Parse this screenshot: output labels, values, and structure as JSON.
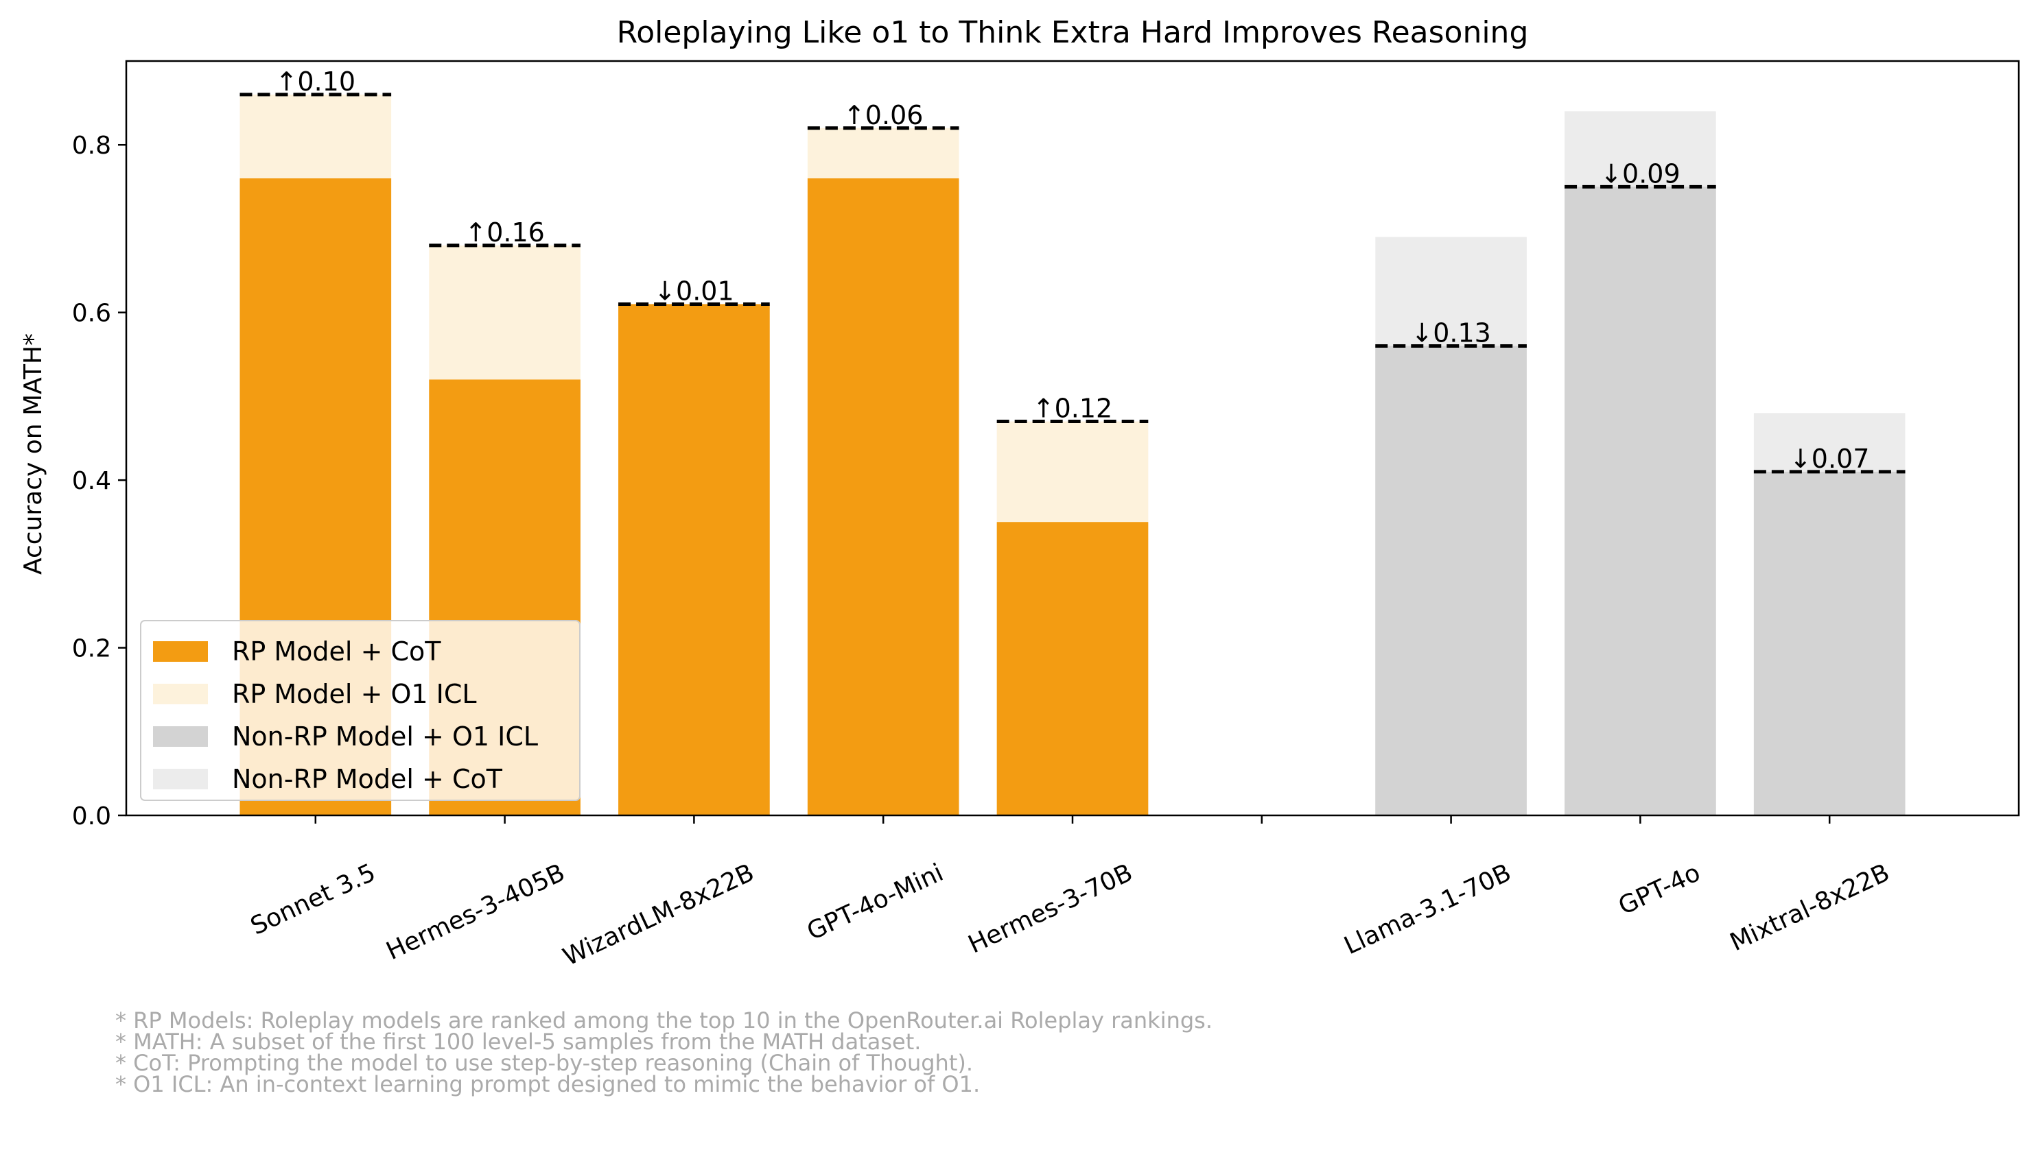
{
  "chart_data": {
    "type": "bar",
    "title": "Roleplaying Like o1 to Think Extra Hard Improves Reasoning",
    "xlabel": "",
    "ylabel": "Accuracy on MATH*",
    "ylim": [
      0,
      0.9
    ],
    "yticks": [
      "0.0",
      "0.2",
      "0.4",
      "0.6",
      "0.8"
    ],
    "ytick_values": [
      0,
      0.2,
      0.4,
      0.6,
      0.8
    ],
    "grid": false,
    "legend_position": "lower-left",
    "categories": [
      "Sonnet 3.5",
      "Hermes-3-405B",
      "WizardLM-8x22B",
      "GPT-4o-Mini",
      "Hermes-3-70B",
      "",
      "Llama-3.1-70B",
      "GPT-4o",
      "Mixtral-8x22B"
    ],
    "groups": {
      "rp": [
        0,
        1,
        2,
        3,
        4
      ],
      "non_rp": [
        6,
        7,
        8
      ]
    },
    "series": [
      {
        "name": "RP Model + CoT",
        "color": "#f39c12",
        "values": [
          0.76,
          0.52,
          0.61,
          0.76,
          0.35,
          null,
          null,
          null,
          null
        ]
      },
      {
        "name": "RP Model + O1 ICL",
        "color": "#fdf2dc",
        "values": [
          0.86,
          0.68,
          0.61,
          0.82,
          0.47,
          null,
          null,
          null,
          null
        ]
      },
      {
        "name": "Non-RP Model + O1 ICL",
        "color": "#d3d3d3",
        "values": [
          null,
          null,
          null,
          null,
          null,
          null,
          0.56,
          0.75,
          0.41
        ]
      },
      {
        "name": "Non-RP Model + CoT",
        "color": "#ececec",
        "values": [
          null,
          null,
          null,
          null,
          null,
          null,
          0.69,
          0.84,
          0.48
        ]
      }
    ],
    "annotations": [
      {
        "index": 0,
        "y": 0.86,
        "text": "↑0.10"
      },
      {
        "index": 1,
        "y": 0.68,
        "text": "↑0.16"
      },
      {
        "index": 2,
        "y": 0.61,
        "text": "↓0.01"
      },
      {
        "index": 3,
        "y": 0.82,
        "text": "↑0.06"
      },
      {
        "index": 4,
        "y": 0.47,
        "text": "↑0.12"
      },
      {
        "index": 6,
        "y": 0.56,
        "text": "↓0.13"
      },
      {
        "index": 7,
        "y": 0.75,
        "text": "↓0.09"
      },
      {
        "index": 8,
        "y": 0.41,
        "text": "↓0.07"
      }
    ],
    "footnotes": [
      "* RP Models: Roleplay models are ranked among the top 10 in the OpenRouter.ai Roleplay rankings.",
      "* MATH: A subset of the first 100 level-5 samples from the MATH dataset.",
      "* CoT: Prompting the model to use step-by-step reasoning (Chain of Thought).",
      "* O1 ICL: An in-context learning prompt designed to mimic the behavior of O1."
    ],
    "colors": {
      "axis": "#000000",
      "footnote": "#aaaaaa",
      "dashed_line": "#000000"
    }
  }
}
